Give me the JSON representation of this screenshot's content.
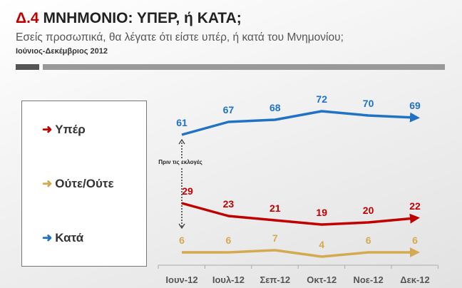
{
  "header": {
    "code": "Δ.4",
    "title": "ΜΝΗΜΟΝΙΟ: ΥΠΕΡ, ή ΚΑΤΑ;",
    "subtitle": "Εσείς προσωπικά, θα λέγατε ότι είστε υπέρ, ή κατά του Μνημονίου;",
    "period": "Ιούνιος-Δεκέμβριος 2012"
  },
  "chart_data": {
    "type": "line",
    "title": "ΜΝΗΜΟΝΙΟ: ΥΠΕΡ, ή ΚΑΤΑ;",
    "categories": [
      "Ιουν-12",
      "Ιουλ-12",
      "Σεπ-12",
      "Οκτ-12",
      "Νοε-12",
      "Δεκ-12"
    ],
    "series": [
      {
        "name": "Υπέρ",
        "color": "#c00000",
        "values": [
          29,
          23,
          21,
          19,
          20,
          22
        ]
      },
      {
        "name": "Ούτε/Ούτε",
        "color": "#d4aa50",
        "values": [
          6,
          6,
          7,
          4,
          6,
          6
        ]
      },
      {
        "name": "Κατά",
        "color": "#1f72c4",
        "values": [
          61,
          67,
          68,
          72,
          70,
          69
        ]
      }
    ],
    "annotation": "Πριν τις εκλογές",
    "legend": "left"
  }
}
